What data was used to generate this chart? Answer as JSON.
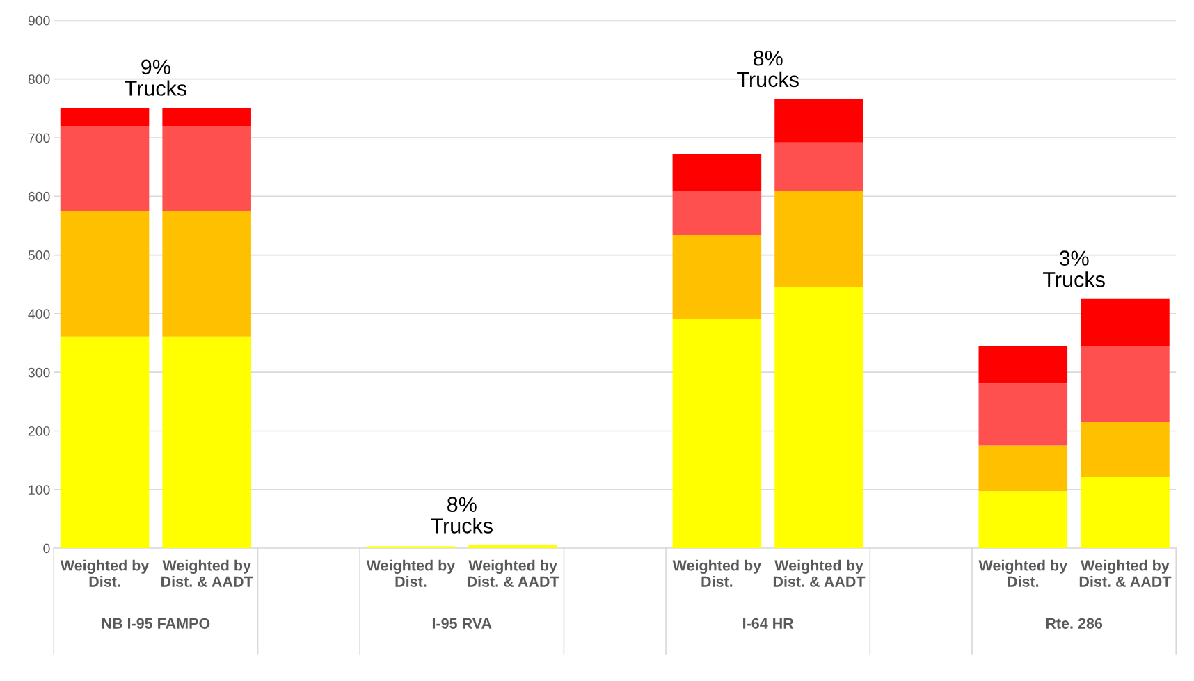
{
  "chart_data": {
    "type": "bar",
    "stacked": true,
    "categories": [
      "Weighted by\nDist.",
      "Weighted by\nDist. & AADT",
      null,
      "Weighted by\nDist.",
      "Weighted by\nDist. & AADT",
      null,
      "Weighted by\nDist.",
      "Weighted by\nDist. & AADT",
      null,
      "Weighted by\nDist.",
      "Weighted by\nDist. & AADT"
    ],
    "series": [
      {
        "color": "#ffff00",
        "values": [
          361,
          361,
          null,
          3,
          5,
          null,
          391,
          445,
          null,
          97,
          121
        ]
      },
      {
        "color": "#ffc000",
        "values": [
          214,
          214,
          null,
          null,
          null,
          null,
          143,
          164,
          null,
          78,
          94
        ]
      },
      {
        "color": "#ff5050",
        "values": [
          145,
          145,
          null,
          null,
          null,
          null,
          74,
          83,
          null,
          106,
          130
        ]
      },
      {
        "color": "#ff0000",
        "values": [
          31,
          31,
          null,
          null,
          null,
          null,
          64,
          74,
          null,
          64,
          80
        ]
      }
    ],
    "ylim": [
      0,
      900
    ],
    "yticks": [
      0,
      100,
      200,
      300,
      400,
      500,
      600,
      700,
      800,
      900
    ],
    "grid": "y",
    "annotations": [
      "NB I-95 FAMPO",
      "I-95 RVA",
      "I-64 HR",
      "Rte. 286",
      "9%\nTrucks",
      "8%\nTrucks",
      "8%\nTrucks",
      "3%\nTrucks"
    ]
  }
}
